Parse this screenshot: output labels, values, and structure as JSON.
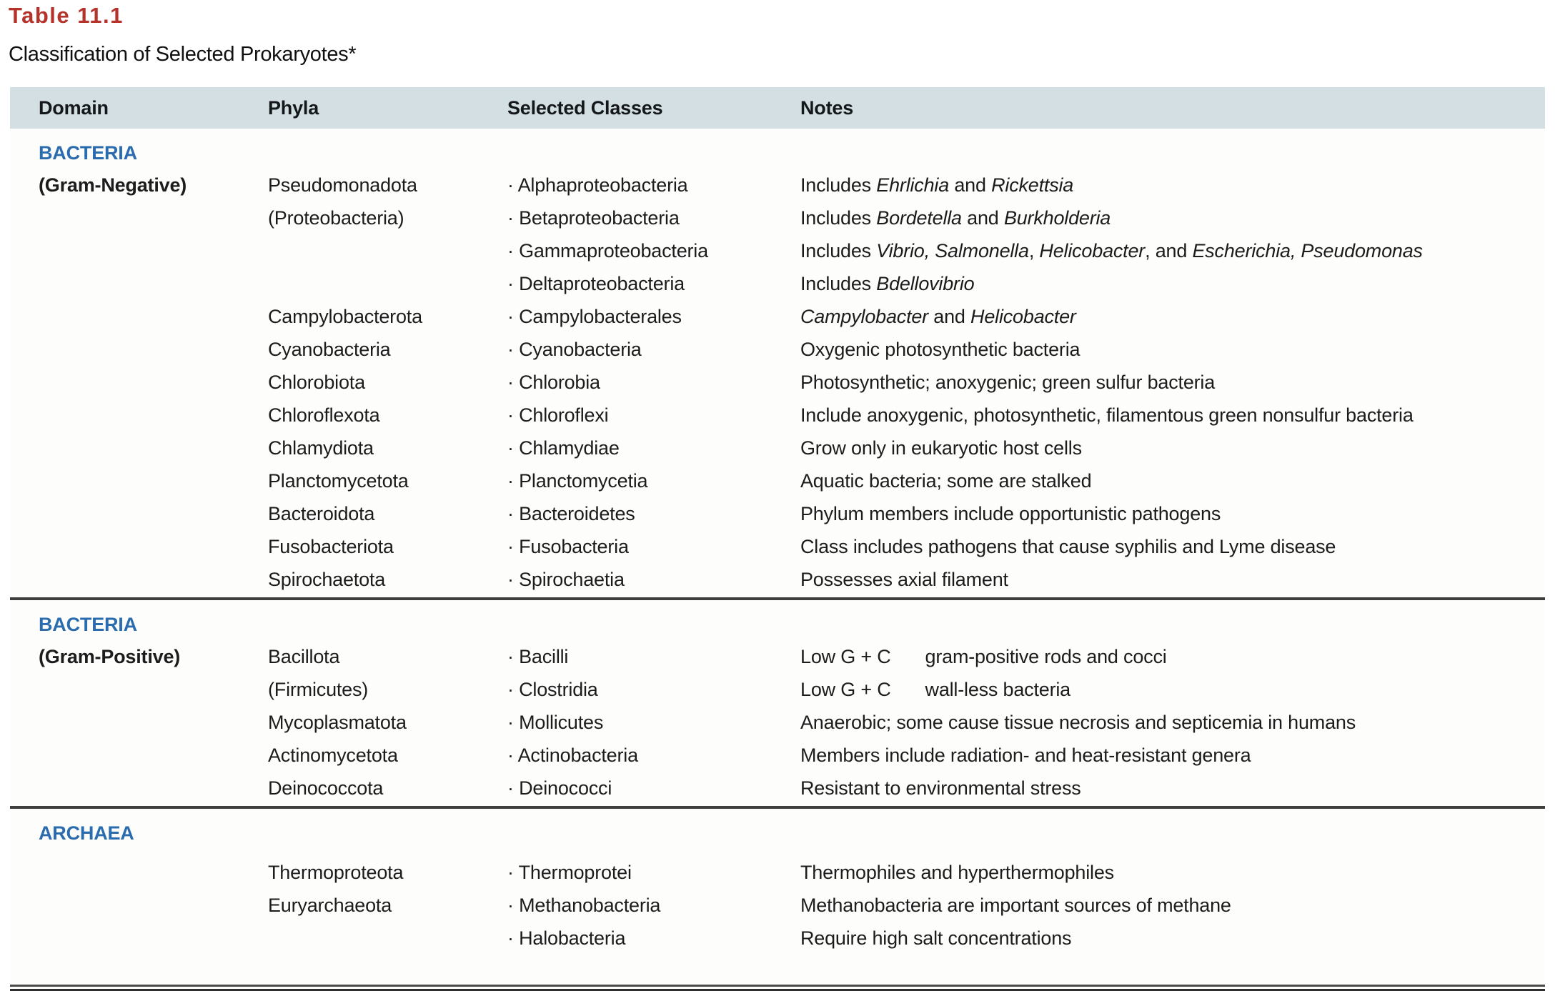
{
  "title": "Table 11.1",
  "subtitle": "Classification of Selected Prokaryotes*",
  "bullet": "·",
  "colors": {
    "title_red": "#b5332b",
    "section_blue": "#2a6cad",
    "header_bg": "#d3dfe3",
    "rule_dark": "#3f3f3f"
  },
  "columns": [
    "Domain",
    "Phyla",
    "Selected Classes",
    "Notes"
  ],
  "sections": [
    {
      "label": "BACTERIA",
      "rows": [
        {
          "domain": "(Gram-Negative)",
          "phylum": "Pseudomonadota",
          "class": "Alphaproteobacteria",
          "note": [
            "Includes ",
            {
              "i": "Ehrlichia"
            },
            " and ",
            {
              "i": "Rickettsia"
            }
          ]
        },
        {
          "domain": "",
          "phylum": "(Proteobacteria)",
          "class": "Betaproteobacteria",
          "note": [
            "Includes ",
            {
              "i": "Bordetella"
            },
            " and ",
            {
              "i": "Burkholderia"
            }
          ]
        },
        {
          "domain": "",
          "phylum": "",
          "class": "Gammaproteobacteria",
          "note": [
            "Includes ",
            {
              "i": "Vibrio, Salmonella"
            },
            ", ",
            {
              "i": "Helicobacter"
            },
            ", and ",
            {
              "i": "Escherichia, Pseudomonas"
            }
          ]
        },
        {
          "domain": "",
          "phylum": "",
          "class": "Deltaproteobacteria",
          "note": [
            "Includes ",
            {
              "i": "Bdellovibrio"
            }
          ]
        },
        {
          "domain": "",
          "phylum": "Campylobacterota",
          "class": "Campylobacterales",
          "note": [
            {
              "i": "Campylobacter"
            },
            " and ",
            {
              "i": "Helicobacter"
            }
          ]
        },
        {
          "domain": "",
          "phylum": "Cyanobacteria",
          "class": "Cyanobacteria",
          "note": [
            "Oxygenic photosynthetic bacteria"
          ]
        },
        {
          "domain": "",
          "phylum": "Chlorobiota",
          "class": "Chlorobia",
          "note": [
            "Photosynthetic; anoxygenic; green sulfur bacteria"
          ]
        },
        {
          "domain": "",
          "phylum": "Chloroflexota",
          "class": "Chloroflexi",
          "note": [
            "Include anoxygenic, photosynthetic, filamentous green nonsulfur bacteria"
          ]
        },
        {
          "domain": "",
          "phylum": "Chlamydiota",
          "class": "Chlamydiae",
          "note": [
            "Grow only in eukaryotic host cells"
          ]
        },
        {
          "domain": "",
          "phylum": "Planctomycetota",
          "class": "Planctomycetia",
          "note": [
            "Aquatic bacteria; some are stalked"
          ]
        },
        {
          "domain": "",
          "phylum": "Bacteroidota",
          "class": "Bacteroidetes",
          "note": [
            "Phylum members include opportunistic pathogens"
          ]
        },
        {
          "domain": "",
          "phylum": "Fusobacteriota",
          "class": "Fusobacteria",
          "note": [
            "Class includes pathogens that cause syphilis and Lyme disease"
          ]
        },
        {
          "domain": "",
          "phylum": "Spirochaetota",
          "class": "Spirochaetia",
          "note": [
            "Possesses axial filament"
          ]
        }
      ]
    },
    {
      "label": "BACTERIA",
      "rows": [
        {
          "domain": "(Gram-Positive)",
          "phylum": "Bacillota",
          "class": "Bacilli",
          "note": [
            "Low G + C",
            {
              "sp": 48
            },
            "gram-positive rods and cocci"
          ]
        },
        {
          "domain": "",
          "phylum": "(Firmicutes)",
          "class": "Clostridia",
          "note": [
            "Low G + C",
            {
              "sp": 48
            },
            "wall-less bacteria"
          ]
        },
        {
          "domain": "",
          "phylum": "Mycoplasmatota",
          "class": "Mollicutes",
          "note": [
            "Anaerobic; some cause tissue necrosis and septicemia in humans"
          ]
        },
        {
          "domain": "",
          "phylum": "Actinomycetota",
          "class": "Actinobacteria",
          "note": [
            "Members include radiation- and heat-resistant genera"
          ]
        },
        {
          "domain": "",
          "phylum": "Deinococcota",
          "class": "Deinococci",
          "note": [
            "Resistant to environmental stress"
          ]
        }
      ]
    },
    {
      "label": "ARCHAEA",
      "rows": [
        {
          "domain": "",
          "phylum": "Thermoproteota",
          "class": "Thermoprotei",
          "note": [
            "Thermophiles and hyperthermophiles"
          ]
        },
        {
          "domain": "",
          "phylum": "Euryarchaeota",
          "class": "Methanobacteria",
          "note": [
            "Methanobacteria are important sources of methane"
          ]
        },
        {
          "domain": "",
          "phylum": "",
          "class": "Halobacteria",
          "note": [
            "Require high salt concentrations"
          ]
        }
      ]
    }
  ]
}
